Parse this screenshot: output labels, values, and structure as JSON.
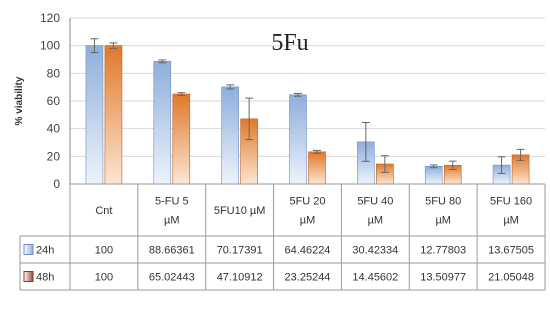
{
  "chart_data": {
    "type": "bar",
    "title": "5Fu",
    "ylabel": "% viability",
    "xlabel": "",
    "ylim": [
      0,
      120
    ],
    "yticks": [
      0,
      20,
      40,
      60,
      80,
      100,
      120
    ],
    "grid": true,
    "legend": "data-table-left",
    "categories": [
      [
        "Cnt"
      ],
      [
        "5-FU 5",
        "µM"
      ],
      [
        "5FU10 µM"
      ],
      [
        "5FU 20",
        "µM"
      ],
      [
        "5FU 40",
        "µM"
      ],
      [
        "5FU 80",
        "µM"
      ],
      [
        "5FU 160",
        "µM"
      ]
    ],
    "series": [
      {
        "name": "24h",
        "color": "#8eaedc",
        "values": [
          100,
          88.66361,
          70.17391,
          64.46224,
          30.42334,
          12.77803,
          13.67505
        ],
        "labels": [
          "100",
          "88.66361",
          "70.17391",
          "64.46224",
          "30.42334",
          "12.77803",
          "13.67505"
        ],
        "errors": [
          5,
          1,
          1.5,
          1,
          14,
          1,
          6
        ]
      },
      {
        "name": "48h",
        "color": "#e0782a",
        "values": [
          100,
          65.02443,
          47.10912,
          23.25244,
          14.45602,
          13.50977,
          21.05048
        ],
        "labels": [
          "100",
          "65.02443",
          "47.10912",
          "23.25244",
          "14.45602",
          "13.50977",
          "21.05048"
        ],
        "errors": [
          2,
          1,
          15,
          1,
          6,
          3,
          4
        ]
      }
    ]
  }
}
